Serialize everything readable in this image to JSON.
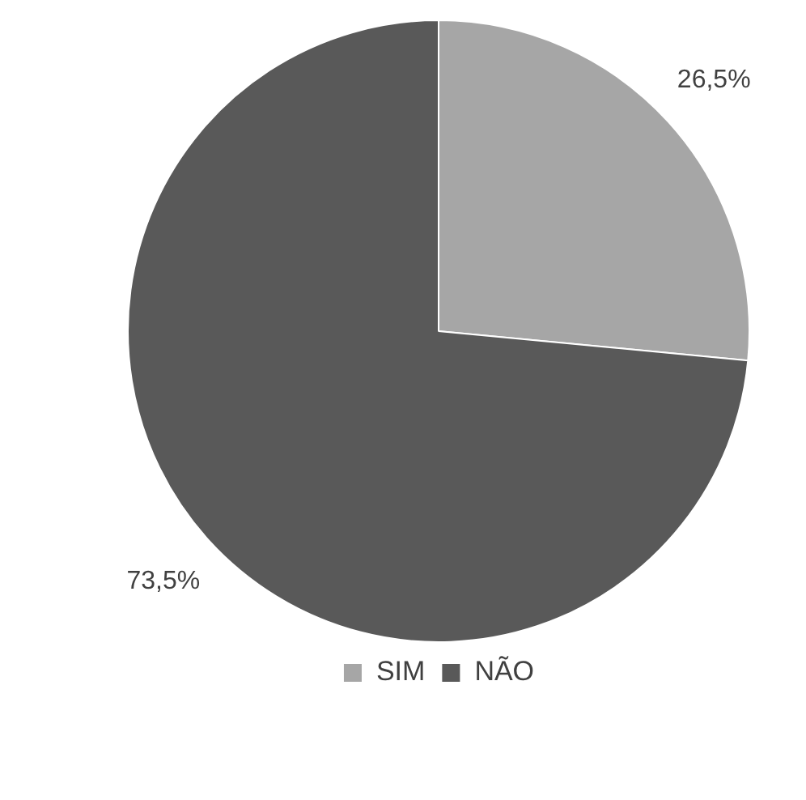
{
  "chart_data": {
    "type": "pie",
    "categories": [
      "SIM",
      "NÃO"
    ],
    "values": [
      26.5,
      73.5
    ],
    "colors": [
      "#a6a6a6",
      "#595959"
    ],
    "value_labels": [
      "26,5%",
      "73,5%"
    ],
    "legend": "bottom"
  }
}
